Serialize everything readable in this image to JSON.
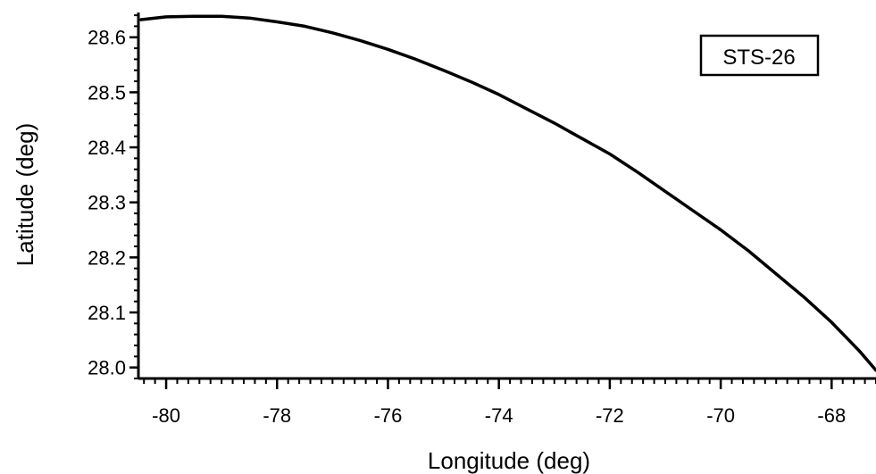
{
  "chart_data": {
    "type": "line",
    "title": "",
    "xlabel": "Longitude (deg)",
    "ylabel": "Latitude (deg)",
    "xlim": [
      -80.5,
      -67.2
    ],
    "ylim": [
      27.98,
      28.645
    ],
    "x_ticks": [
      -80,
      -78,
      -76,
      -74,
      -72,
      -70,
      -68
    ],
    "x_tick_labels": [
      "-80",
      "-78",
      "-76",
      "-74",
      "-72",
      "-70",
      "-68"
    ],
    "y_ticks": [
      28.0,
      28.1,
      28.2,
      28.3,
      28.4,
      28.5,
      28.6
    ],
    "y_tick_labels": [
      "28.0",
      "28.1",
      "28.2",
      "28.3",
      "28.4",
      "28.5",
      "28.6"
    ],
    "grid": false,
    "legend": {
      "label": "STS-26",
      "placement": "top-right"
    },
    "series": [
      {
        "name": "STS-26",
        "color": "#000000",
        "x": [
          -80.45,
          -80.0,
          -79.5,
          -79.0,
          -78.5,
          -78.0,
          -77.5,
          -77.0,
          -76.5,
          -76.0,
          -75.5,
          -75.0,
          -74.5,
          -74.0,
          -73.5,
          -73.0,
          -72.5,
          -72.0,
          -71.5,
          -71.0,
          -70.5,
          -70.0,
          -69.5,
          -69.0,
          -68.5,
          -68.0,
          -67.5,
          -67.2
        ],
        "y": [
          28.632,
          28.637,
          28.638,
          28.638,
          28.635,
          28.628,
          28.62,
          28.608,
          28.594,
          28.578,
          28.56,
          28.54,
          28.519,
          28.496,
          28.47,
          28.444,
          28.416,
          28.388,
          28.355,
          28.32,
          28.285,
          28.25,
          28.212,
          28.17,
          28.128,
          28.082,
          28.03,
          27.995
        ]
      }
    ]
  }
}
